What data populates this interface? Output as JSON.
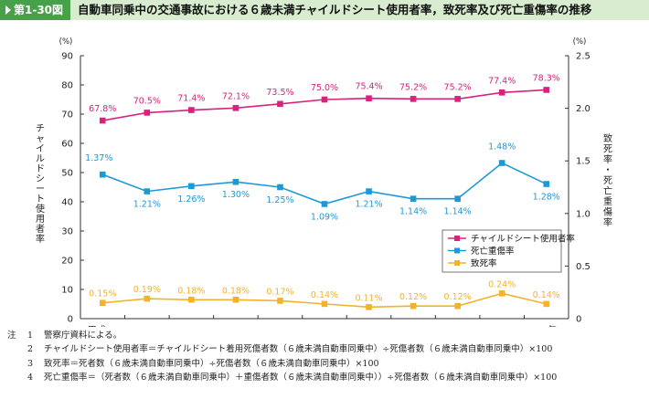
{
  "header": {
    "figure_number": "第1-30図",
    "title": "自動車同乗中の交通事故における６歳未満チャイルドシート使用者率，致死率及び死亡重傷率の推移"
  },
  "chart_data": {
    "type": "line",
    "categories": [
      "平成20",
      "21",
      "22",
      "23",
      "24",
      "25",
      "26",
      "27",
      "28",
      "29",
      "30年"
    ],
    "left_axis": {
      "unit": "(%)",
      "label": "チャイルドシート使用者率",
      "ylim": [
        0,
        90
      ],
      "ticks": [
        "0",
        "10",
        "20",
        "30",
        "40",
        "50",
        "60",
        "70",
        "80",
        "90"
      ]
    },
    "right_axis": {
      "unit": "(%)",
      "label": "致死率・死亡重傷率",
      "ylim": [
        0,
        2.5
      ],
      "ticks": [
        "0",
        "0.5",
        "1.0",
        "1.5",
        "2.0",
        "2.5"
      ]
    },
    "series": [
      {
        "name": "チャイルドシート使用者率",
        "axis": "left",
        "color": "#d6237d",
        "marker": "square",
        "values": [
          67.8,
          70.5,
          71.4,
          72.1,
          73.5,
          75.0,
          75.4,
          75.2,
          75.2,
          77.4,
          78.3
        ],
        "labels": [
          "67.8%",
          "70.5%",
          "71.4%",
          "72.1%",
          "73.5%",
          "75.0%",
          "75.4%",
          "75.2%",
          "75.2%",
          "77.4%",
          "78.3%"
        ]
      },
      {
        "name": "死亡重傷率",
        "axis": "right",
        "color": "#1d9ad6",
        "marker": "square",
        "values": [
          1.37,
          1.21,
          1.26,
          1.3,
          1.25,
          1.09,
          1.21,
          1.14,
          1.14,
          1.48,
          1.28
        ],
        "labels": [
          "1.37%",
          "1.21%",
          "1.26%",
          "1.30%",
          "1.25%",
          "1.09%",
          "1.21%",
          "1.14%",
          "1.14%",
          "1.48%",
          "1.28%"
        ]
      },
      {
        "name": "致死率",
        "axis": "right",
        "color": "#f2b32a",
        "marker": "square",
        "values": [
          0.15,
          0.19,
          0.18,
          0.18,
          0.17,
          0.14,
          0.11,
          0.12,
          0.12,
          0.24,
          0.14
        ],
        "labels": [
          "0.15%",
          "0.19%",
          "0.18%",
          "0.18%",
          "0.17%",
          "0.14%",
          "0.11%",
          "0.12%",
          "0.12%",
          "0.24%",
          "0.14%"
        ]
      }
    ],
    "legend_position": "right-middle",
    "grid": false
  },
  "notes": {
    "heading": "注",
    "items": [
      {
        "num": "1",
        "text": "警察庁資料による。"
      },
      {
        "num": "2",
        "text": "チャイルドシート使用者率＝チャイルドシート着用死傷者数（６歳未満自動車同乗中）÷死傷者数（６歳未満自動車同乗中）×100"
      },
      {
        "num": "3",
        "text": "致死率＝死者数（６歳未満自動車同乗中）÷死傷者数（６歳未満自動車同乗中）×100"
      },
      {
        "num": "4",
        "text": "死亡重傷率＝（死者数（６歳未満自動車同乗中）＋重傷者数（６歳未満自動車同乗中））÷死傷者数（６歳未満自動車同乗中）×100"
      }
    ]
  }
}
